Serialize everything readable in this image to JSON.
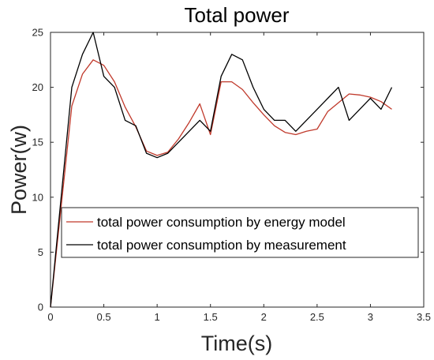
{
  "chart_data": {
    "type": "line",
    "title": "Total power",
    "xlabel": "Time(s)",
    "ylabel": "Power(w)",
    "xlim": [
      0,
      3.5
    ],
    "ylim": [
      0,
      25
    ],
    "xticks": [
      0,
      0.5,
      1,
      1.5,
      2,
      2.5,
      3,
      3.5
    ],
    "xtick_labels": [
      "0",
      "0.5",
      "1",
      "1.5",
      "2",
      "2.5",
      "3",
      "3.5"
    ],
    "yticks": [
      0,
      5,
      10,
      15,
      20,
      25
    ],
    "ytick_labels": [
      "0",
      "5",
      "10",
      "15",
      "20",
      "25"
    ],
    "grid": false,
    "legend_position": "bottom-right",
    "series": [
      {
        "name": "total power consumption by energy model",
        "color": "#c0392b",
        "x": [
          0,
          0.2,
          0.3,
          0.4,
          0.5,
          0.6,
          0.7,
          0.8,
          0.9,
          1.0,
          1.1,
          1.2,
          1.3,
          1.4,
          1.5,
          1.6,
          1.7,
          1.8,
          1.9,
          2.0,
          2.1,
          2.2,
          2.3,
          2.4,
          2.5,
          2.6,
          2.7,
          2.8,
          2.9,
          3.0,
          3.1,
          3.2
        ],
        "y": [
          0,
          18.3,
          21.2,
          22.5,
          22.0,
          20.5,
          18.2,
          16.4,
          14.2,
          13.8,
          14.1,
          15.3,
          16.8,
          18.5,
          15.7,
          20.5,
          20.5,
          19.8,
          18.6,
          17.5,
          16.5,
          15.9,
          15.7,
          16.0,
          16.2,
          17.8,
          18.6,
          19.4,
          19.3,
          19.1,
          18.7,
          18.0
        ]
      },
      {
        "name": "total power consumption by measurement",
        "color": "#000000",
        "x": [
          0,
          0.2,
          0.3,
          0.4,
          0.5,
          0.6,
          0.7,
          0.8,
          0.9,
          1.0,
          1.1,
          1.2,
          1.3,
          1.4,
          1.5,
          1.6,
          1.7,
          1.8,
          1.9,
          2.0,
          2.1,
          2.2,
          2.3,
          2.4,
          2.5,
          2.6,
          2.7,
          2.8,
          2.9,
          3.0,
          3.1,
          3.2
        ],
        "y": [
          0,
          20.0,
          23.0,
          25.0,
          21.0,
          20.0,
          17.0,
          16.5,
          14.0,
          13.6,
          14.0,
          15.0,
          16.0,
          17.0,
          16.0,
          21.0,
          23.0,
          22.5,
          20.0,
          18.0,
          17.0,
          17.0,
          16.0,
          17.0,
          18.0,
          19.0,
          20.0,
          17.0,
          18.0,
          19.0,
          18.0,
          20.0
        ]
      }
    ]
  }
}
